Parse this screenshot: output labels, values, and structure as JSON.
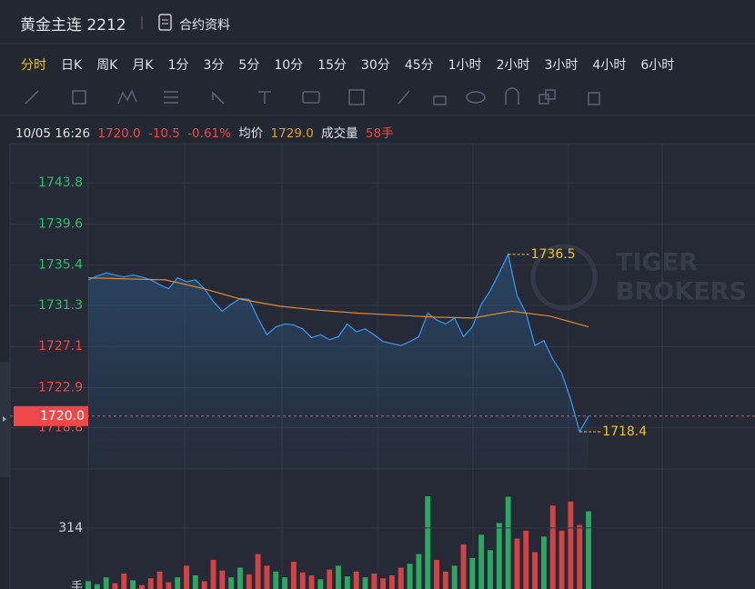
{
  "header": {
    "title": "黄金主连 2212",
    "info_link": "合约资料"
  },
  "timeframes": {
    "items": [
      "分时",
      "日K",
      "周K",
      "月K",
      "1分",
      "3分",
      "5分",
      "10分",
      "15分",
      "30分",
      "45分",
      "1小时",
      "2小时",
      "3小时",
      "4小时",
      "6小时"
    ],
    "active": 0,
    "active_color": "#f0c419"
  },
  "info_bar": {
    "datetime": "10/05 16:26",
    "price": "1720.0",
    "change": "-10.5",
    "change_pct": "-0.61%",
    "avg_label": "均价",
    "avg_price": {
      "value": 1729,
      "label": "1729.0"
    },
    "volume_label": "成交量",
    "volume": "58手"
  },
  "chart": {
    "type": "line",
    "ylim": [
      1714.6,
      1747.8
    ],
    "yticks": [
      1718.8,
      1722.9,
      1727.1,
      1731.3,
      1735.4,
      1739.6,
      1743.8
    ],
    "up_color": "#2ebd6b",
    "down_color": "#f04848",
    "price": {
      "color": "#3a92e6",
      "values": [
        1733.9,
        1734.3,
        1734.6,
        1734.4,
        1734.2,
        1734.4,
        1734.2,
        1733.9,
        1733.4,
        1733.0,
        1734.1,
        1733.7,
        1733.9,
        1733.0,
        1731.7,
        1730.7,
        1731.4,
        1732.0,
        1731.9,
        1730.0,
        1728.3,
        1729.1,
        1729.4,
        1729.3,
        1728.9,
        1728.0,
        1728.3,
        1727.8,
        1728.1,
        1729.4,
        1728.6,
        1728.9,
        1728.3,
        1727.6,
        1727.4,
        1727.2,
        1727.6,
        1728.1,
        1730.5,
        1729.8,
        1729.4,
        1730.0,
        1728.1,
        1729.1,
        1731.4,
        1732.8,
        1734.6,
        1736.5,
        1732.3,
        1730.5,
        1727.2,
        1727.7,
        1725.8,
        1724.4,
        1721.7,
        1718.4,
        1720.0
      ]
    },
    "average": {
      "color": "#e08a2c",
      "values": [
        1734.1,
        1734.0,
        1733.9,
        1733.0,
        1731.9,
        1731.2,
        1730.8,
        1730.5,
        1730.3,
        1730.1,
        1730.0,
        1730.7,
        1730.2,
        1729.1
      ]
    },
    "last_price": {
      "value": 1720,
      "label": "1720.0",
      "color": "#f04848"
    },
    "annotations": [
      {
        "value": 1736.5,
        "color": "#f0c419"
      },
      {
        "value": 1718.4,
        "color": "#f0c419"
      }
    ],
    "watermark": [
      "TIGER",
      "BROKERS"
    ],
    "volume": {
      "ylim": [
        0,
        618
      ],
      "yticks": [
        314
      ],
      "unit": "手",
      "values": [
        40,
        25,
        60,
        30,
        80,
        45,
        20,
        55,
        90,
        35,
        60,
        120,
        70,
        40,
        150,
        95,
        60,
        110,
        75,
        180,
        120,
        90,
        60,
        140,
        85,
        70,
        50,
        100,
        120,
        65,
        90,
        60,
        80,
        55,
        70,
        110,
        130,
        180,
        478,
        150,
        90,
        120,
        230,
        160,
        280,
        200,
        340,
        475,
        260,
        300,
        190,
        270,
        430,
        300,
        450,
        330,
        400
      ]
    }
  }
}
